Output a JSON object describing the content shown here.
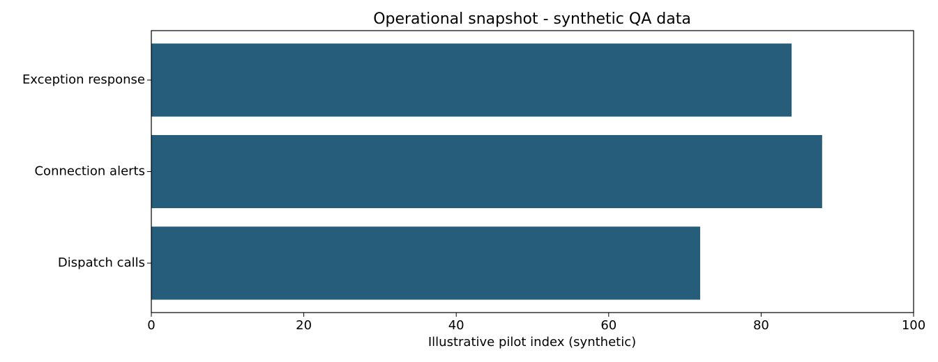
{
  "chart_data": {
    "type": "barh",
    "title": "Operational snapshot - synthetic QA data",
    "xlabel": "Illustrative pilot index (synthetic)",
    "categories": [
      "Exception response",
      "Connection alerts",
      "Dispatch calls"
    ],
    "values": [
      84,
      88,
      72
    ],
    "color": "#255d7a",
    "xlim": [
      0,
      100
    ],
    "xticks": [
      0,
      20,
      40,
      60,
      80,
      100
    ],
    "grid": false
  }
}
